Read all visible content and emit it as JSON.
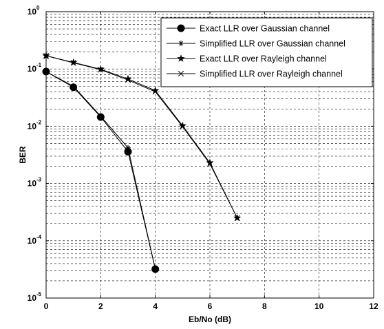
{
  "chart_data": {
    "type": "line",
    "title": "",
    "xlabel": "Eb/No (dB)",
    "ylabel": "BER",
    "xlim": [
      0,
      12
    ],
    "ylim": [
      1e-05,
      1
    ],
    "yscale": "log",
    "grid": true,
    "legend_position": "top-right",
    "x_ticks": [
      "0",
      "2",
      "4",
      "6",
      "8",
      "10",
      "12"
    ],
    "y_ticks": [
      {
        "base": "10",
        "exp": "0"
      },
      {
        "base": "10",
        "exp": "-1"
      },
      {
        "base": "10",
        "exp": "-2"
      },
      {
        "base": "10",
        "exp": "-3"
      },
      {
        "base": "10",
        "exp": "-4"
      },
      {
        "base": "10",
        "exp": "-5"
      }
    ],
    "series": [
      {
        "name": "Exact LLR over Gaussian channel",
        "marker": "circle",
        "color": "#000000",
        "x": [
          0,
          1,
          2,
          3,
          4
        ],
        "y": [
          0.09,
          0.048,
          0.0145,
          0.0036,
          3.2e-05
        ]
      },
      {
        "name": "Simplified LLR over Gaussian channel",
        "marker": "asterisk",
        "color": "#000000",
        "x": [
          0,
          1,
          2,
          3,
          4
        ],
        "y": [
          0.09,
          0.05,
          0.015,
          0.0042,
          3.2e-05
        ]
      },
      {
        "name": "Exact LLR over Rayleigh channel",
        "marker": "star",
        "color": "#000000",
        "x": [
          0,
          1,
          2,
          3,
          4,
          5,
          6,
          7
        ],
        "y": [
          0.17,
          0.13,
          0.099,
          0.067,
          0.042,
          0.0102,
          0.0023,
          0.00025
        ]
      },
      {
        "name": "Simplified LLR over Rayleigh channel",
        "marker": "x",
        "color": "#000000",
        "x": [
          0,
          1,
          2,
          3,
          4,
          5,
          6,
          7
        ],
        "y": [
          0.17,
          0.128,
          0.097,
          0.064,
          0.04,
          0.0098,
          0.0022,
          0.00025
        ]
      }
    ]
  }
}
